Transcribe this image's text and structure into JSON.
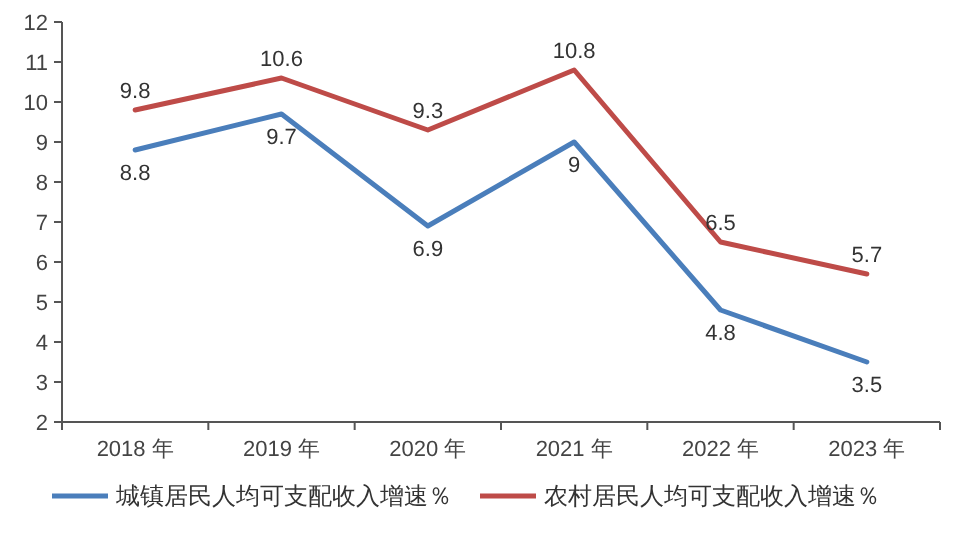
{
  "chart_data": {
    "type": "line",
    "categories": [
      "2018 年",
      "2019 年",
      "2020 年",
      "2021 年",
      "2022 年",
      "2023 年"
    ],
    "series": [
      {
        "name": "城镇居民人均可支配收入增速％",
        "color": "#4a7ebb",
        "values": [
          8.8,
          9.7,
          6.9,
          9,
          4.8,
          3.5
        ]
      },
      {
        "name": "农村居民人均可支配收入增速％",
        "color": "#be4b48",
        "values": [
          9.8,
          10.6,
          9.3,
          10.8,
          6.5,
          5.7
        ]
      }
    ],
    "ylim": [
      2,
      12
    ],
    "yticks": [
      2,
      3,
      4,
      5,
      6,
      7,
      8,
      9,
      10,
      11,
      12
    ],
    "grid": false,
    "legend": "bottom",
    "data_labels": true,
    "marker": "none",
    "line_style": "solid"
  }
}
